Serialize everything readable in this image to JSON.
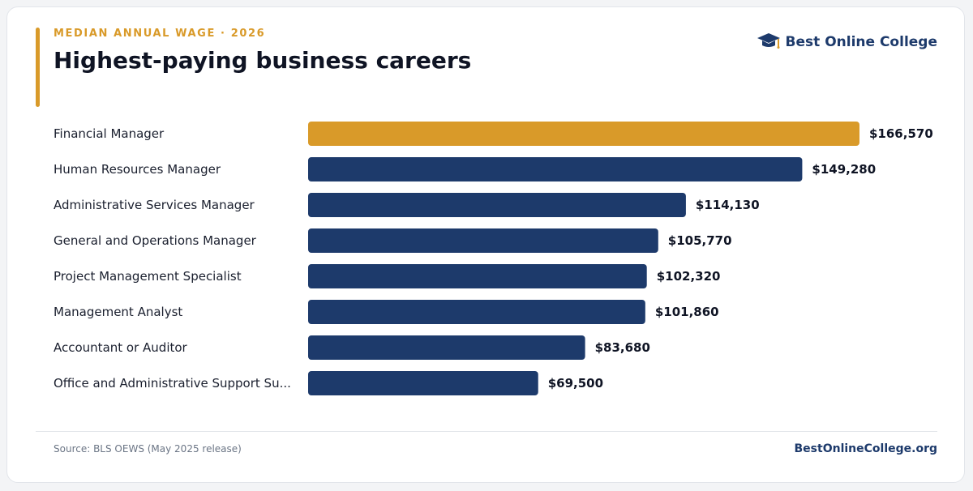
{
  "header": {
    "eyebrow": "MEDIAN ANNUAL WAGE · 2026",
    "title": "Highest-paying business careers"
  },
  "brand": {
    "name": "Best Online College",
    "icon": "graduation-cap-icon"
  },
  "footer": {
    "source": "Source: BLS OEWS (May 2025 release)",
    "site": "BestOnlineCollege.org"
  },
  "colors": {
    "accent": "#d99a29",
    "primary": "#1d3a6b",
    "text": "#0f1424"
  },
  "chart_data": {
    "type": "bar",
    "orientation": "horizontal",
    "title": "Highest-paying business careers",
    "categories": [
      "Financial Manager",
      "Human Resources Manager",
      "Administrative Services Manager",
      "General and Operations Manager",
      "Project Management Specialist",
      "Management Analyst",
      "Accountant or Auditor",
      "Office and Administrative Support Su..."
    ],
    "values": [
      166570,
      149280,
      114130,
      105770,
      102320,
      101860,
      83680,
      69500
    ],
    "value_labels": [
      "$166,570",
      "$149,280",
      "$114,130",
      "$105,770",
      "$102,320",
      "$101,860",
      "$83,680",
      "$69,500"
    ],
    "highlight_index": 0,
    "highlight_color": "#d99a29",
    "bar_color": "#1d3a6b",
    "xlim": [
      0,
      166570
    ],
    "grid": false,
    "legend": "none"
  }
}
